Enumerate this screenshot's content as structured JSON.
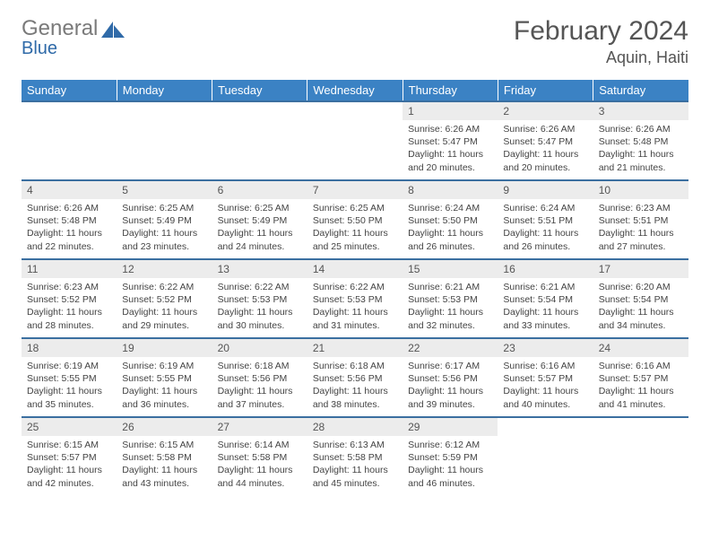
{
  "logo": {
    "text1": "General",
    "text2": "Blue"
  },
  "title": "February 2024",
  "location": "Aquin, Haiti",
  "colors": {
    "header_bg": "#3b82c4",
    "header_text": "#ffffff",
    "daynum_bg": "#ececec",
    "row_border": "#3b6fa0",
    "body_text": "#444444",
    "logo_gray": "#7a7a7a",
    "logo_blue": "#2f6aa8"
  },
  "columns": [
    "Sunday",
    "Monday",
    "Tuesday",
    "Wednesday",
    "Thursday",
    "Friday",
    "Saturday"
  ],
  "weeks": [
    [
      null,
      null,
      null,
      null,
      {
        "n": "1",
        "sunrise": "6:26 AM",
        "sunset": "5:47 PM",
        "daylight": "11 hours and 20 minutes."
      },
      {
        "n": "2",
        "sunrise": "6:26 AM",
        "sunset": "5:47 PM",
        "daylight": "11 hours and 20 minutes."
      },
      {
        "n": "3",
        "sunrise": "6:26 AM",
        "sunset": "5:48 PM",
        "daylight": "11 hours and 21 minutes."
      }
    ],
    [
      {
        "n": "4",
        "sunrise": "6:26 AM",
        "sunset": "5:48 PM",
        "daylight": "11 hours and 22 minutes."
      },
      {
        "n": "5",
        "sunrise": "6:25 AM",
        "sunset": "5:49 PM",
        "daylight": "11 hours and 23 minutes."
      },
      {
        "n": "6",
        "sunrise": "6:25 AM",
        "sunset": "5:49 PM",
        "daylight": "11 hours and 24 minutes."
      },
      {
        "n": "7",
        "sunrise": "6:25 AM",
        "sunset": "5:50 PM",
        "daylight": "11 hours and 25 minutes."
      },
      {
        "n": "8",
        "sunrise": "6:24 AM",
        "sunset": "5:50 PM",
        "daylight": "11 hours and 26 minutes."
      },
      {
        "n": "9",
        "sunrise": "6:24 AM",
        "sunset": "5:51 PM",
        "daylight": "11 hours and 26 minutes."
      },
      {
        "n": "10",
        "sunrise": "6:23 AM",
        "sunset": "5:51 PM",
        "daylight": "11 hours and 27 minutes."
      }
    ],
    [
      {
        "n": "11",
        "sunrise": "6:23 AM",
        "sunset": "5:52 PM",
        "daylight": "11 hours and 28 minutes."
      },
      {
        "n": "12",
        "sunrise": "6:22 AM",
        "sunset": "5:52 PM",
        "daylight": "11 hours and 29 minutes."
      },
      {
        "n": "13",
        "sunrise": "6:22 AM",
        "sunset": "5:53 PM",
        "daylight": "11 hours and 30 minutes."
      },
      {
        "n": "14",
        "sunrise": "6:22 AM",
        "sunset": "5:53 PM",
        "daylight": "11 hours and 31 minutes."
      },
      {
        "n": "15",
        "sunrise": "6:21 AM",
        "sunset": "5:53 PM",
        "daylight": "11 hours and 32 minutes."
      },
      {
        "n": "16",
        "sunrise": "6:21 AM",
        "sunset": "5:54 PM",
        "daylight": "11 hours and 33 minutes."
      },
      {
        "n": "17",
        "sunrise": "6:20 AM",
        "sunset": "5:54 PM",
        "daylight": "11 hours and 34 minutes."
      }
    ],
    [
      {
        "n": "18",
        "sunrise": "6:19 AM",
        "sunset": "5:55 PM",
        "daylight": "11 hours and 35 minutes."
      },
      {
        "n": "19",
        "sunrise": "6:19 AM",
        "sunset": "5:55 PM",
        "daylight": "11 hours and 36 minutes."
      },
      {
        "n": "20",
        "sunrise": "6:18 AM",
        "sunset": "5:56 PM",
        "daylight": "11 hours and 37 minutes."
      },
      {
        "n": "21",
        "sunrise": "6:18 AM",
        "sunset": "5:56 PM",
        "daylight": "11 hours and 38 minutes."
      },
      {
        "n": "22",
        "sunrise": "6:17 AM",
        "sunset": "5:56 PM",
        "daylight": "11 hours and 39 minutes."
      },
      {
        "n": "23",
        "sunrise": "6:16 AM",
        "sunset": "5:57 PM",
        "daylight": "11 hours and 40 minutes."
      },
      {
        "n": "24",
        "sunrise": "6:16 AM",
        "sunset": "5:57 PM",
        "daylight": "11 hours and 41 minutes."
      }
    ],
    [
      {
        "n": "25",
        "sunrise": "6:15 AM",
        "sunset": "5:57 PM",
        "daylight": "11 hours and 42 minutes."
      },
      {
        "n": "26",
        "sunrise": "6:15 AM",
        "sunset": "5:58 PM",
        "daylight": "11 hours and 43 minutes."
      },
      {
        "n": "27",
        "sunrise": "6:14 AM",
        "sunset": "5:58 PM",
        "daylight": "11 hours and 44 minutes."
      },
      {
        "n": "28",
        "sunrise": "6:13 AM",
        "sunset": "5:58 PM",
        "daylight": "11 hours and 45 minutes."
      },
      {
        "n": "29",
        "sunrise": "6:12 AM",
        "sunset": "5:59 PM",
        "daylight": "11 hours and 46 minutes."
      },
      null,
      null
    ]
  ],
  "labels": {
    "sunrise": "Sunrise:",
    "sunset": "Sunset:",
    "daylight": "Daylight:"
  }
}
